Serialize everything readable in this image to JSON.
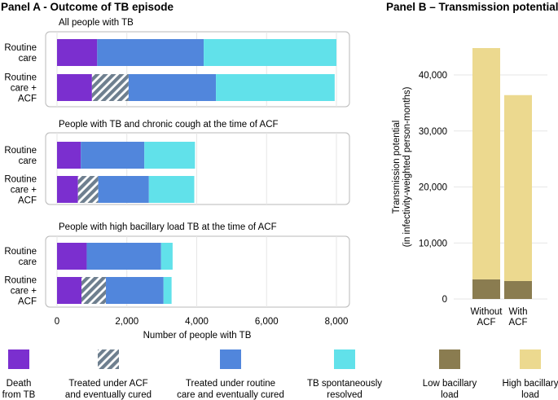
{
  "colors": {
    "death": "#7b2fcf",
    "treated_acf": "#6e7f8f",
    "treated_routine": "#5186dc",
    "spontaneous": "#61e1ea",
    "low_load": "#8a7c50",
    "high_load": "#ecd98f",
    "panel_border": "#b8b8b8",
    "grid": "#e6e6e6"
  },
  "chart_data": [
    {
      "type": "bar",
      "orientation": "horizontal",
      "stacked": true,
      "title": "Panel A - Outcome of TB episode",
      "xlabel": "Number of people with TB",
      "xlim": [
        0,
        8000
      ],
      "xticks": [
        "0",
        "2,000",
        "4,000",
        "6,000",
        "8,000"
      ],
      "xtick_values": [
        0,
        2000,
        4000,
        6000,
        8000
      ],
      "categories": [
        "Routine care",
        "Routine care + ACF"
      ],
      "category_lines": [
        [
          "Routine",
          "care"
        ],
        [
          "Routine",
          "care +",
          "ACF"
        ]
      ],
      "segment_names": [
        "Death from TB",
        "Treated under ACF and eventually cured",
        "Treated under routine care and eventually cured",
        "TB spontaneously resolved"
      ],
      "panels": [
        {
          "title": "All people with TB",
          "bars": [
            [
              1150,
              0,
              3050,
              3800
            ],
            [
              1000,
              1050,
              2500,
              3400
            ]
          ]
        },
        {
          "title": "People with TB and chronic cough at the time of ACF",
          "bars": [
            [
              680,
              0,
              1820,
              1450
            ],
            [
              600,
              580,
              1450,
              1300
            ]
          ]
        },
        {
          "title": "People with high bacillary load TB at the time of ACF",
          "bars": [
            [
              850,
              0,
              2130,
              330
            ],
            [
              700,
              700,
              1650,
              230
            ]
          ]
        }
      ]
    },
    {
      "type": "bar",
      "stacked": true,
      "title": "Panel B – Transmission potential",
      "ylabel_lines": [
        "Transmission potential",
        "(in infectivity-weighted person-months)"
      ],
      "ylim": [
        0,
        48000
      ],
      "yticks": [
        "0",
        "10,000",
        "20,000",
        "30,000",
        "40,000"
      ],
      "ytick_values": [
        0,
        10000,
        20000,
        30000,
        40000
      ],
      "categories": [
        "Without ACF",
        "With ACF"
      ],
      "category_lines": [
        [
          "Without",
          "ACF"
        ],
        [
          "With",
          "ACF"
        ]
      ],
      "series": [
        {
          "name": "Low bacillary load",
          "values": [
            3500,
            3200
          ]
        },
        {
          "name": "High bacillary load",
          "values": [
            41300,
            33200
          ]
        }
      ]
    }
  ],
  "legend": [
    {
      "key": "death",
      "lines": [
        "Death",
        "from TB"
      ],
      "hatched": false
    },
    {
      "key": "treated_acf",
      "lines": [
        "Treated under ACF",
        "and eventually cured"
      ],
      "hatched": true
    },
    {
      "key": "treated_routine",
      "lines": [
        "Treated under routine",
        "care and eventually cured"
      ],
      "hatched": false
    },
    {
      "key": "spontaneous",
      "lines": [
        "TB spontaneously",
        "resolved"
      ],
      "hatched": false
    },
    {
      "key": "low_load",
      "lines": [
        "Low bacillary",
        "load"
      ],
      "hatched": false
    },
    {
      "key": "high_load",
      "lines": [
        "High bacillary",
        "load"
      ],
      "hatched": false
    }
  ]
}
